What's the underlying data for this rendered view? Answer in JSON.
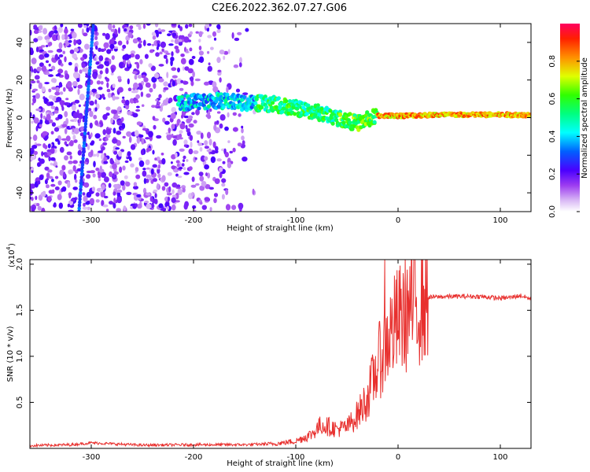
{
  "title": "C2E6.2022.362.07.27.G06",
  "colors": {
    "snr_line": "#e8302e",
    "axis": "#000000",
    "cmap": [
      "#ffffff",
      "#d9b8f5",
      "#9c3cf0",
      "#5a00e0",
      "#0000ff",
      "#00ffff",
      "#00ff00",
      "#ffff00",
      "#ff7f00",
      "#ff0000"
    ]
  },
  "chart_data": [
    {
      "type": "heatmap",
      "title": "C2E6.2022.362.07.27.G06",
      "xlabel": "Height of straight line (km)",
      "ylabel": "Frequency (Hz)",
      "xlim": [
        -360,
        130
      ],
      "ylim": [
        -50,
        50
      ],
      "xticks": [
        -300,
        -200,
        -100,
        0,
        100
      ],
      "xtick_labels": [
        "-300",
        "-200",
        "-100",
        "0",
        "100"
      ],
      "yticks": [
        -40,
        -20,
        0,
        20,
        40
      ],
      "ytick_labels": [
        "-40",
        "-20",
        "0",
        "20",
        "40"
      ],
      "colorbar": {
        "label": "Normalized spectral amplitude",
        "range": [
          0,
          1
        ],
        "ticks": [
          0.0,
          0.2,
          0.4,
          0.6,
          0.8
        ],
        "tick_labels": [
          "0.0",
          "0.2",
          "0.4",
          "0.6",
          "0.8"
        ]
      },
      "ridge": {
        "description_points_height_km": [
          -215,
          -180,
          -150,
          -120,
          -100,
          -80,
          -60,
          -40,
          -20,
          0,
          40,
          80,
          130
        ],
        "frequency_hz": [
          8,
          9,
          8,
          7,
          5,
          3,
          0,
          -3,
          1,
          1,
          1.5,
          1.5,
          1.5
        ]
      },
      "streak": {
        "height_km": [
          -312,
          -298
        ],
        "frequency_hz": [
          -50,
          50
        ]
      }
    },
    {
      "type": "line",
      "xlabel": "Height of straight line (km)",
      "ylabel": "SNR (10 * v/v)",
      "yscale_label": "(x10",
      "yscale_exp": "4",
      "xlim": [
        -360,
        130
      ],
      "ylim": [
        0,
        20500
      ],
      "xticks": [
        -300,
        -200,
        -100,
        0,
        100
      ],
      "xtick_labels": [
        "-300",
        "-200",
        "-100",
        "0",
        "100"
      ],
      "yticks": [
        5000,
        10000,
        15000,
        20000
      ],
      "ytick_labels": [
        "0.5",
        "1.0",
        "1.5",
        "2.0"
      ],
      "series": [
        {
          "name": "SNR",
          "x": [
            -360,
            -320,
            -300,
            -250,
            -200,
            -150,
            -120,
            -100,
            -85,
            -75,
            -60,
            -50,
            -40,
            -30,
            -20,
            -15,
            -10,
            0,
            10,
            20,
            30,
            50,
            80,
            100,
            110,
            120,
            130
          ],
          "y": [
            300,
            400,
            600,
            350,
            400,
            400,
            500,
            800,
            1500,
            2600,
            2100,
            2300,
            3600,
            5500,
            9000,
            10500,
            12000,
            13800,
            15000,
            16000,
            16400,
            16500,
            16500,
            16300,
            16400,
            16600,
            16200
          ]
        }
      ]
    }
  ]
}
